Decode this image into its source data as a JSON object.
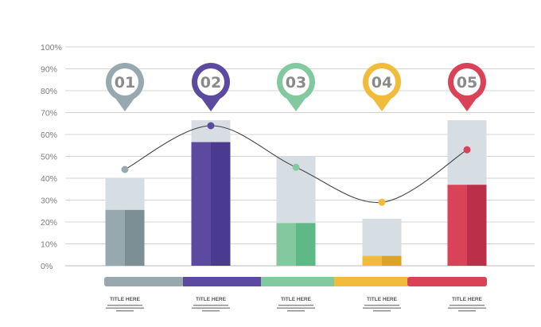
{
  "chart_data": {
    "type": "bar",
    "categories": [
      "01",
      "02",
      "03",
      "04",
      "05"
    ],
    "series": [
      {
        "values": [
          40,
          66.5,
          50,
          21.5,
          66.5
        ],
        "role": "background"
      },
      {
        "values": [
          25.5,
          56.5,
          19.5,
          4.5,
          37
        ],
        "role": "filled"
      },
      {
        "values": [
          44,
          64,
          45,
          29,
          53
        ],
        "role": "line"
      }
    ],
    "ylim": [
      0,
      100
    ],
    "yticks": [
      "0%",
      "10%",
      "20%",
      "30%",
      "40%",
      "50%",
      "60%",
      "70%",
      "80%",
      "90%",
      "100%"
    ],
    "grid": true,
    "colors": {
      "light": [
        "#97a8af",
        "#5b4a9f",
        "#82c9a0",
        "#f1bc3c",
        "#da4258"
      ],
      "dark": [
        "#7b8f95",
        "#4a3b90",
        "#5fb987",
        "#dba328",
        "#bb2f48"
      ],
      "background": "#d7dee3",
      "line": "#444444"
    },
    "labels": [
      "TITLE HERE",
      "TITLE HERE",
      "TITLE HERE",
      "TITLE HERE",
      "TITLE HERE"
    ]
  }
}
